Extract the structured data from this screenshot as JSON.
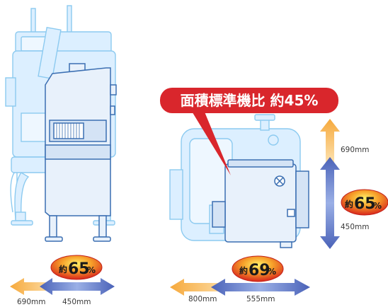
{
  "colors": {
    "ghost_fill": "#dcefff",
    "ghost_stroke": "#8ccaf0",
    "machine_fill": "#e8f1fb",
    "machine_stroke": "#3b6fb2",
    "arrow_orange": "#f4b45a",
    "arrow_blue": "#4a62b8",
    "banner_red": "#d9262c",
    "badge_red": "#e23a22",
    "badge_yellow": "#fff36a"
  },
  "banner": {
    "text": "面積標準機比 約45%"
  },
  "left_view": {
    "badge": {
      "prefix": "約",
      "number": "65",
      "suffix": "%"
    },
    "dim_old": "690mm",
    "dim_new": "450mm"
  },
  "right_view": {
    "badge_bottom": {
      "prefix": "約",
      "number": "69",
      "suffix": "%"
    },
    "badge_side": {
      "prefix": "約",
      "number": "65",
      "suffix": "%"
    },
    "dim_old_width": "800mm",
    "dim_new_width": "555mm",
    "dim_old_depth": "690mm",
    "dim_new_depth": "450mm"
  }
}
